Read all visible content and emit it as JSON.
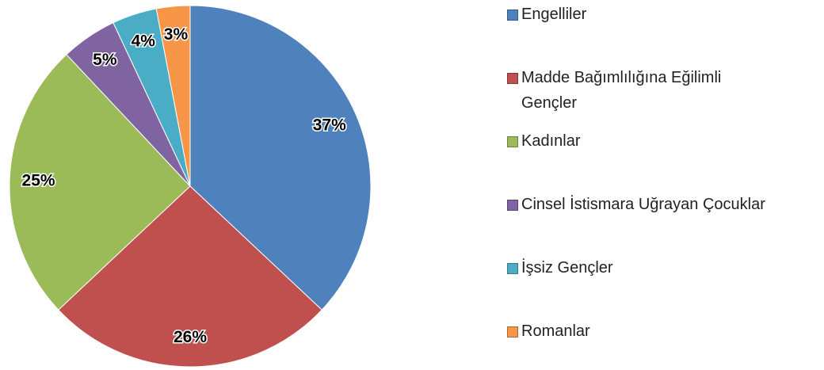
{
  "chart_data": {
    "type": "pie",
    "categories": [
      "Engelliler",
      "Madde Bağımlılığına Eğilimli Gençler",
      "Kadınlar",
      "Cinsel İstismara Uğrayan Çocuklar",
      "İşsiz Gençler",
      "Romanlar"
    ],
    "values": [
      37,
      26,
      25,
      5,
      4,
      3
    ],
    "value_labels": [
      "37%",
      "26%",
      "25%",
      "5%",
      "4%",
      "3%"
    ],
    "colors": [
      "#4f81bd",
      "#c0504d",
      "#9bbb59",
      "#8064a2",
      "#4bacc6",
      "#f79646"
    ],
    "legend": "right"
  }
}
